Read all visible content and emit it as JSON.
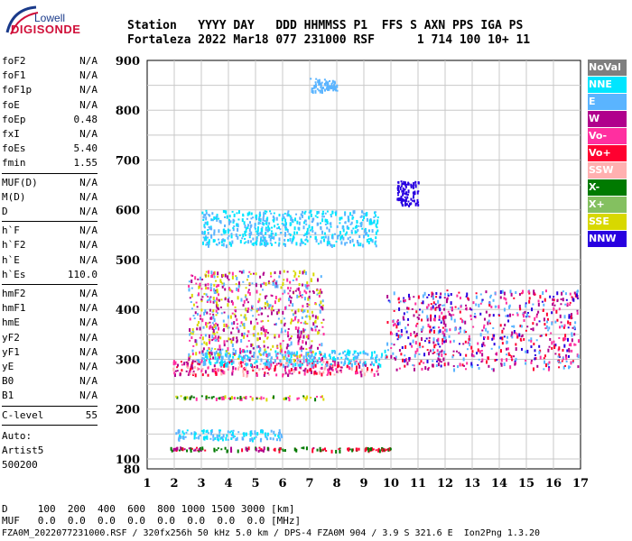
{
  "logo": {
    "top": "Lowell",
    "main": "DIGISONDE"
  },
  "header": {
    "line1": "Station   YYYY DAY   DDD HHMMSS P1  FFS S AXN PPS IGA PS",
    "line2": "Fortaleza 2022 Mar18 077 231000 RSF      1 714 100 10+ 11"
  },
  "params": {
    "group1": [
      {
        "name": "foF2",
        "value": "N/A"
      },
      {
        "name": "foF1",
        "value": "N/A"
      },
      {
        "name": "foF1p",
        "value": "N/A"
      },
      {
        "name": "foE",
        "value": "N/A"
      },
      {
        "name": "foEp",
        "value": "0.48"
      },
      {
        "name": "fxI",
        "value": "N/A"
      },
      {
        "name": "foEs",
        "value": "5.40"
      },
      {
        "name": "fmin",
        "value": "1.55"
      }
    ],
    "group2": [
      {
        "name": "MUF(D)",
        "value": "N/A"
      },
      {
        "name": "M(D)",
        "value": "N/A"
      },
      {
        "name": "D",
        "value": "N/A"
      }
    ],
    "group3": [
      {
        "name": "h`F",
        "value": "N/A"
      },
      {
        "name": "h`F2",
        "value": "N/A"
      },
      {
        "name": "h`E",
        "value": "N/A"
      },
      {
        "name": "h`Es",
        "value": "110.0"
      }
    ],
    "group4": [
      {
        "name": "hmF2",
        "value": "N/A"
      },
      {
        "name": "hmF1",
        "value": "N/A"
      },
      {
        "name": "hmE",
        "value": "N/A"
      },
      {
        "name": "yF2",
        "value": "N/A"
      },
      {
        "name": "yF1",
        "value": "N/A"
      },
      {
        "name": "yE",
        "value": "N/A"
      },
      {
        "name": "B0",
        "value": "N/A"
      },
      {
        "name": "B1",
        "value": "N/A"
      }
    ],
    "clevel": {
      "name": "C-level",
      "value": "55"
    },
    "auto_lines": [
      "Auto:",
      "Artist5",
      "500200"
    ]
  },
  "legend": [
    {
      "label": "NoVal",
      "color": "#7f7f7f"
    },
    {
      "label": "NNE",
      "color": "#00e5ff"
    },
    {
      "label": "E",
      "color": "#5ab4ff"
    },
    {
      "label": "W",
      "color": "#b0008c"
    },
    {
      "label": "Vo-",
      "color": "#ff2fa0"
    },
    {
      "label": "Vo+",
      "color": "#ff0030"
    },
    {
      "label": "SSW",
      "color": "#ffb0b0"
    },
    {
      "label": "X-",
      "color": "#007a00"
    },
    {
      "label": "X+",
      "color": "#84c060"
    },
    {
      "label": "SSE",
      "color": "#d8d800"
    },
    {
      "label": "NNW",
      "color": "#2800e0"
    }
  ],
  "footer": {
    "line1": "D     100  200  400  600  800 1000 1500 3000 [km]",
    "line2": "MUF   0.0  0.0  0.0  0.0  0.0  0.0  0.0  0.0 [MHz]",
    "line3": "FZA0M_2022077231000.RSF / 320fx256h 50 kHz 5.0 km / DPS-4 FZA0M 904 / 3.9 S 321.6 E  Ion2Png 1.3.20"
  },
  "chart_data": {
    "type": "scatter",
    "xlabel": "",
    "ylabel": "",
    "xlim": [
      1,
      17
    ],
    "ylim": [
      80,
      900
    ],
    "xticks": [
      1,
      2,
      3,
      4,
      5,
      6,
      7,
      8,
      9,
      10,
      11,
      12,
      13,
      14,
      15,
      16,
      17
    ],
    "yticks": [
      100,
      200,
      300,
      400,
      500,
      600,
      700,
      800,
      900
    ],
    "grid": true,
    "traces": [
      {
        "series": "Es low layer",
        "colors": [
          "E",
          "NNE"
        ],
        "f": [
          2.0,
          6.0
        ],
        "h": [
          140,
          160
        ]
      },
      {
        "series": "Es base",
        "colors": [
          "Vo+",
          "X-",
          "W"
        ],
        "f": [
          1.8,
          7.2
        ],
        "h": [
          118,
          125
        ]
      },
      {
        "series": "Es base tail",
        "colors": [
          "X-",
          "Vo+"
        ],
        "f": [
          7.2,
          10.0
        ],
        "h": [
          118,
          124
        ]
      },
      {
        "series": "Es multiple",
        "colors": [
          "Vo-",
          "X-",
          "SSE"
        ],
        "f": [
          2.0,
          7.5
        ],
        "h": [
          222,
          228
        ]
      },
      {
        "series": "F trace band",
        "colors": [
          "Vo+",
          "W",
          "Vo-",
          "SSW"
        ],
        "f": [
          1.9,
          9.5
        ],
        "h": [
          270,
          300
        ]
      },
      {
        "series": "F trace",
        "colors": [
          "E",
          "NNE"
        ],
        "f": [
          2.8,
          9.8
        ],
        "h": [
          290,
          320
        ]
      },
      {
        "series": "F scatter",
        "colors": [
          "W",
          "Vo-",
          "SSE",
          "E"
        ],
        "f": [
          2.5,
          7.5
        ],
        "h": [
          300,
          480
        ]
      },
      {
        "series": "spread F",
        "colors": [
          "W",
          "Vo-",
          "NNW",
          "E",
          "Vo+"
        ],
        "f": [
          9.8,
          16.9
        ],
        "h": [
          280,
          440
        ]
      },
      {
        "series": "second hop",
        "colors": [
          "E",
          "NNE"
        ],
        "f": [
          3.0,
          9.5
        ],
        "h": [
          530,
          600
        ]
      },
      {
        "series": "oblique echo",
        "colors": [
          "NNW"
        ],
        "f": [
          10.2,
          11.0
        ],
        "h": [
          610,
          660
        ]
      },
      {
        "series": "high echo",
        "colors": [
          "E"
        ],
        "f": [
          7.0,
          8.0
        ],
        "h": [
          840,
          865
        ]
      }
    ]
  }
}
